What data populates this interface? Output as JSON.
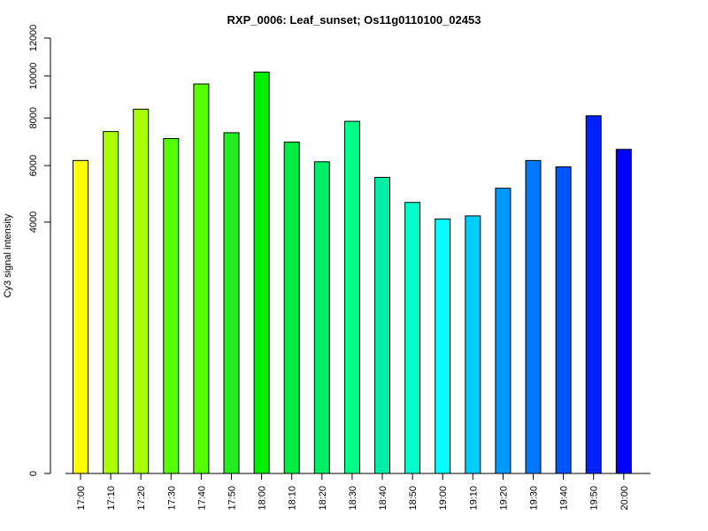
{
  "chart_data": {
    "type": "bar",
    "title": "RXP_0006: Leaf_sunset; Os11g0110100_02453",
    "xlabel": "",
    "ylabel": "Cy3 signal intensity",
    "ylim": [
      0,
      12000
    ],
    "y_scale": "sqrt",
    "y_ticks": [
      0,
      4000,
      6000,
      8000,
      10000,
      12000
    ],
    "grid": false,
    "categories": [
      "17:00",
      "17:10",
      "17:20",
      "17:30",
      "17:40",
      "17:50",
      "18:00",
      "18:10",
      "18:20",
      "18:30",
      "18:40",
      "18:50",
      "19:00",
      "19:10",
      "19:20",
      "19:30",
      "19:40",
      "19:50",
      "20:00"
    ],
    "values": [
      6200,
      7400,
      8400,
      7100,
      9600,
      7350,
      10200,
      6950,
      6150,
      7850,
      5550,
      4650,
      4100,
      4200,
      5150,
      6200,
      5950,
      8100,
      6650
    ],
    "colors": [
      "#ffff00",
      "#aaff00",
      "#aaff00",
      "#55ff00",
      "#55ff00",
      "#22ee22",
      "#00ee00",
      "#00ee44",
      "#00ee66",
      "#00ff88",
      "#00eeaa",
      "#00ffcc",
      "#00ffff",
      "#00ccff",
      "#0099ff",
      "#0077ff",
      "#0055ff",
      "#0022ff",
      "#0000ff"
    ]
  }
}
